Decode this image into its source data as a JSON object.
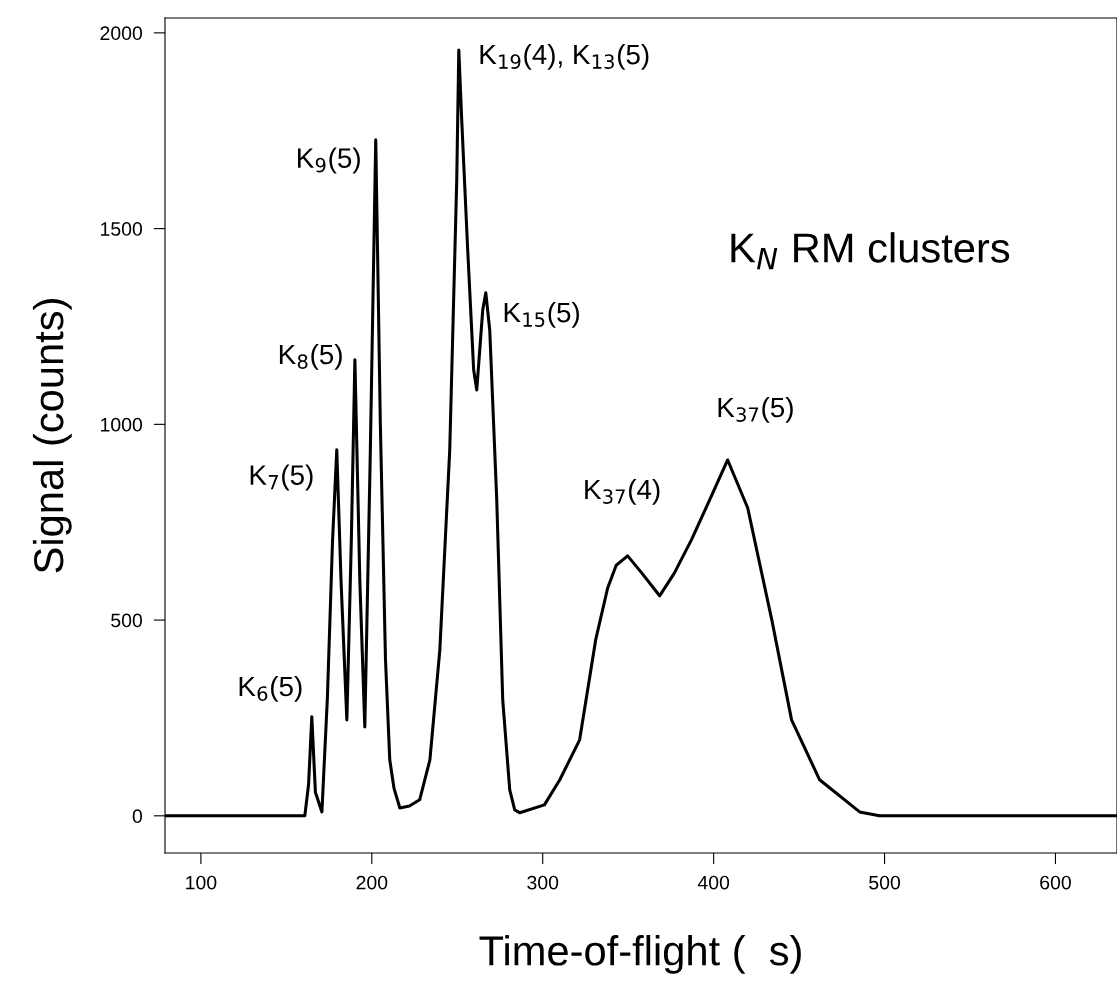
{
  "chart_data": {
    "type": "line",
    "xlabel": "Time-of-flight (  s)",
    "ylabel": "Signal (counts)",
    "xlim": [
      79,
      636
    ],
    "ylim": [
      -95,
      2038
    ],
    "xticks": [
      100,
      200,
      300,
      400,
      500,
      600
    ],
    "yticks": [
      0,
      500,
      1000,
      1500,
      2000
    ],
    "grid": false,
    "legend": false,
    "marker": "none",
    "line_style": "solid",
    "series": [
      {
        "color": "#000000",
        "x": [
          79,
          150,
          160.8,
          163,
          164.9,
          167,
          170.8,
          174,
          177,
          179.5,
          182,
          185.4,
          188,
          190.1,
          193,
          195.9,
          199,
          202.3,
          205,
          208,
          210.5,
          213,
          216.4,
          222,
          228,
          234,
          239.8,
          245.6,
          249.7,
          250.9,
          252.6,
          256.1,
          259.6,
          261.4,
          264.9,
          266.7,
          269,
          273.1,
          276.6,
          280.7,
          283.6,
          286.5,
          301,
          310,
          321.6,
          331,
          338,
          343,
          349.7,
          358,
          368.4,
          377,
          387,
          398,
          408.2,
          419.9,
          434,
          445.6,
          462,
          485.4,
          497,
          636
        ],
        "values": [
          0,
          0,
          0,
          80,
          253,
          60,
          10,
          300,
          700,
          935,
          600,
          245,
          700,
          1165,
          600,
          227,
          900,
          1727,
          1000,
          400,
          143,
          70,
          20,
          25,
          41,
          143,
          424,
          935,
          1625,
          1956,
          1778,
          1446,
          1139,
          1088,
          1292,
          1336,
          1241,
          807,
          296,
          66,
          15,
          8,
          28,
          92,
          194,
          450,
          582,
          640,
          664,
          620,
          562,
          620,
          705,
          810,
          909,
          787,
          501,
          245,
          92,
          10,
          0,
          0
        ]
      }
    ],
    "annotations": [
      {
        "text": "K$_{6}$(5)",
        "x": 164.9,
        "y": 253
      },
      {
        "text": "K$_{7}$(5)",
        "x": 179.5,
        "y": 935
      },
      {
        "text": "K$_{8}$(5)",
        "x": 190.1,
        "y": 1165
      },
      {
        "text": "K$_{9}$(5)",
        "x": 202.3,
        "y": 1727
      },
      {
        "text": "K$_{19}$(4), K$_{13}$(5)",
        "x": 250.9,
        "y": 1956
      },
      {
        "text": "K$_{15}$(5)",
        "x": 266.7,
        "y": 1336
      },
      {
        "text": "K$_{37}$(4)",
        "x": 349.7,
        "y": 664
      },
      {
        "text": "K$_{37}$(5)",
        "x": 408.2,
        "y": 909
      },
      "K$_{N}$ RM clusters"
    ]
  }
}
